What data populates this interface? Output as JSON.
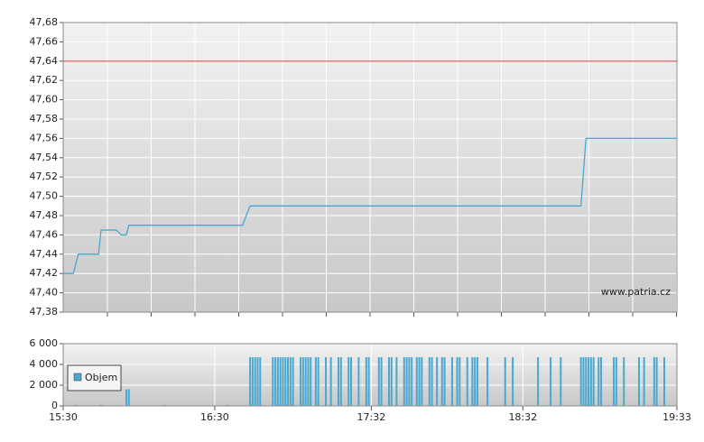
{
  "chart_data": [
    {
      "type": "line",
      "annotation": "www.patria.cz",
      "xlim": [
        "15:30",
        "19:33"
      ],
      "ylim": [
        47.38,
        47.68
      ],
      "yticks": [
        {
          "value": 47.38,
          "label": "47,38"
        },
        {
          "value": 47.4,
          "label": "47,40"
        },
        {
          "value": 47.42,
          "label": "47,42"
        },
        {
          "value": 47.44,
          "label": "47,44"
        },
        {
          "value": 47.46,
          "label": "47,46"
        },
        {
          "value": 47.48,
          "label": "47,48"
        },
        {
          "value": 47.5,
          "label": "47,50"
        },
        {
          "value": 47.52,
          "label": "47,52"
        },
        {
          "value": 47.54,
          "label": "47,54"
        },
        {
          "value": 47.56,
          "label": "47,56"
        },
        {
          "value": 47.58,
          "label": "47,58"
        },
        {
          "value": 47.6,
          "label": "47,60"
        },
        {
          "value": 47.62,
          "label": "47,62"
        },
        {
          "value": 47.64,
          "label": "47,64"
        },
        {
          "value": 47.66,
          "label": "47,66"
        },
        {
          "value": 47.68,
          "label": "47,68"
        }
      ],
      "reference_line": {
        "value": 47.64,
        "color": "#e05050"
      },
      "grid": true,
      "x": [
        "15:30",
        "15:34",
        "15:36",
        "15:44",
        "15:45",
        "15:51",
        "15:53",
        "15:55",
        "15:56",
        "16:41",
        "16:44",
        "18:55",
        "18:57",
        "19:33"
      ],
      "series": [
        {
          "color": "#4aa8d0",
          "values": [
            47.42,
            47.42,
            47.44,
            47.44,
            47.465,
            47.465,
            47.46,
            47.46,
            47.47,
            47.47,
            47.49,
            47.49,
            47.56,
            47.56
          ]
        }
      ]
    },
    {
      "type": "bar",
      "legend": "upper left",
      "xlim": [
        "15:30",
        "19:33"
      ],
      "ylim": [
        0,
        6000
      ],
      "xticks": [
        "15:30",
        "16:30",
        "17:32",
        "18:32",
        "19:33"
      ],
      "yticks": [
        0,
        {
          "value": 2000,
          "label": "2 000"
        },
        {
          "value": 4000,
          "label": "4 000"
        },
        {
          "value": 6000,
          "label": "6 000"
        }
      ],
      "x": [
        "15:35",
        "15:45",
        "15:55",
        "15:56",
        "16:10",
        "16:35",
        "16:44",
        "16:45",
        "16:46",
        "16:47",
        "16:48",
        "16:53",
        "16:54",
        "16:55",
        "16:56",
        "16:57",
        "16:58",
        "16:59",
        "17:00",
        "17:01",
        "17:04",
        "17:05",
        "17:06",
        "17:07",
        "17:08",
        "17:10",
        "17:11",
        "17:14",
        "17:16",
        "17:19",
        "17:20",
        "17:23",
        "17:24",
        "17:27",
        "17:30",
        "17:31",
        "17:35",
        "17:36",
        "17:39",
        "17:40",
        "17:42",
        "17:45",
        "17:46",
        "17:47",
        "17:48",
        "17:50",
        "17:51",
        "17:52",
        "17:55",
        "17:56",
        "17:58",
        "18:00",
        "18:01",
        "18:04",
        "18:06",
        "18:07",
        "18:10",
        "18:12",
        "18:13",
        "18:14",
        "18:18",
        "18:25",
        "18:28",
        "18:38",
        "18:43",
        "18:47",
        "18:55",
        "18:56",
        "18:57",
        "18:58",
        "18:59",
        "19:00",
        "19:02",
        "19:03",
        "19:08",
        "19:09",
        "19:12",
        "19:18",
        "19:20",
        "19:24",
        "19:25",
        "19:28"
      ],
      "series": [
        {
          "name": "Objem",
          "color": "#4aa8d0",
          "values": [
            100,
            100,
            1600,
            1600,
            100,
            100,
            4700,
            4700,
            4700,
            4700,
            4700,
            4700,
            4700,
            4700,
            4700,
            4700,
            4700,
            4700,
            4700,
            4700,
            4700,
            4700,
            4700,
            4700,
            4700,
            4700,
            4700,
            4700,
            4700,
            4700,
            4700,
            4700,
            4700,
            4700,
            4700,
            4700,
            4700,
            4700,
            4700,
            4700,
            4700,
            4700,
            4700,
            4700,
            4700,
            4700,
            4700,
            4700,
            4700,
            4700,
            4700,
            4700,
            4700,
            4700,
            4700,
            4700,
            4700,
            4700,
            4700,
            4700,
            4700,
            4700,
            4700,
            4700,
            4700,
            4700,
            4700,
            4700,
            4700,
            4700,
            4700,
            4700,
            4700,
            4700,
            4700,
            4700,
            4700,
            4700,
            4700,
            4700,
            4700,
            4700
          ]
        }
      ]
    }
  ]
}
